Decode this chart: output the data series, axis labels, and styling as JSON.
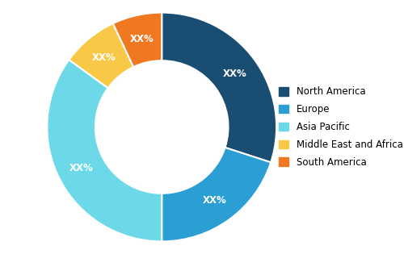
{
  "labels": [
    "North America",
    "Europe",
    "Asia Pacific",
    "Middle East and Africa",
    "South America"
  ],
  "values": [
    30,
    20,
    35,
    8,
    7
  ],
  "colors": [
    "#1a4d72",
    "#2b9fd4",
    "#6dd9e8",
    "#f9c846",
    "#f07820"
  ],
  "label_text": "XX%",
  "wedge_text_color": "white",
  "wedge_text_fontsize": 8.5,
  "legend_fontsize": 8.5,
  "background_color": "#ffffff",
  "donut_width": 0.42,
  "startangle": 90
}
